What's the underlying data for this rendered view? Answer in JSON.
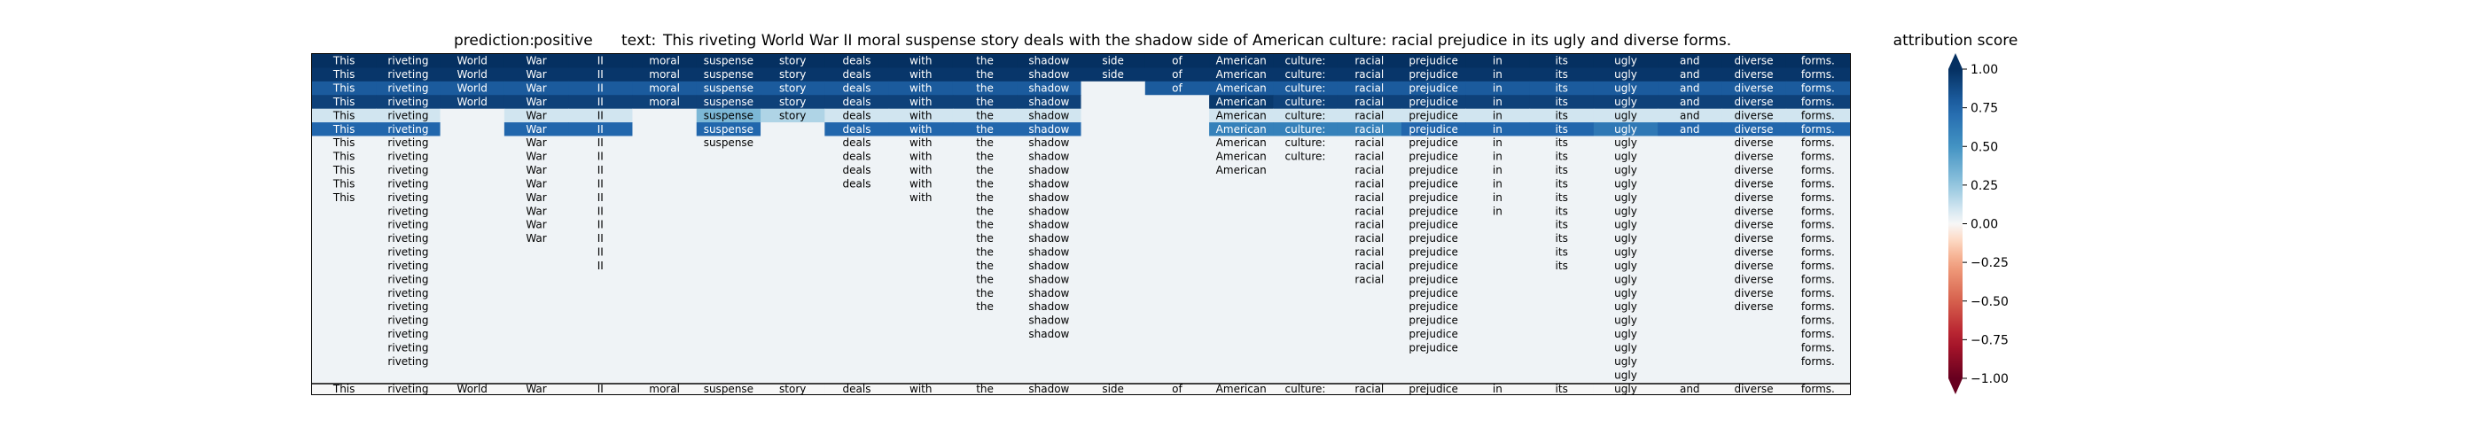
{
  "header": {
    "prediction_label": "prediction:",
    "prediction_value": "positive",
    "text_label": "text:",
    "text_value": "This riveting World War II moral suspense story deals with the shadow side of American culture: racial prejudice in its ugly and diverse forms."
  },
  "colorbar": {
    "title": "attribution score",
    "ticks": [
      "1.00",
      "0.75",
      "0.50",
      "0.25",
      "0.00",
      "−0.25",
      "−0.50",
      "−0.75",
      "−1.00"
    ],
    "colormap": "RdBu",
    "range": [
      -1,
      1
    ]
  },
  "chart_data": {
    "type": "heatmap",
    "title": "",
    "tokens": [
      "This",
      "riveting",
      "World",
      "War",
      "II",
      "moral",
      "suspense",
      "story",
      "deals",
      "with",
      "the",
      "shadow",
      "side",
      "of",
      "American",
      "culture:",
      "racial",
      "prejudice",
      "in",
      "its",
      "ugly",
      "and",
      "diverse",
      "forms."
    ],
    "column_lengths": [
      11,
      23,
      4,
      14,
      16,
      4,
      7,
      5,
      10,
      11,
      19,
      21,
      2,
      3,
      9,
      8,
      17,
      22,
      12,
      16,
      24,
      6,
      19,
      23
    ],
    "row_scores": [
      1.0,
      0.97,
      0.8,
      0.92,
      0.1,
      0.75,
      0.02,
      0.02,
      0.02,
      0.02,
      0.02,
      0.02,
      0.02,
      0.02,
      0.02,
      0.02,
      0.02,
      0.02,
      0.02,
      0.02,
      0.02,
      0.02,
      0.02,
      0.02
    ],
    "cell_overrides": [
      {
        "row": 3,
        "token": "of",
        "score": 0.02
      },
      {
        "row": 3,
        "token": "side",
        "score": 0.02
      },
      {
        "row": 3,
        "token": "American",
        "score": 0.96
      },
      {
        "row": 4,
        "token": "suspense",
        "score": 0.32
      },
      {
        "row": 4,
        "token": "story",
        "score": 0.18
      },
      {
        "row": 5,
        "token": "American",
        "score": 0.6
      },
      {
        "row": 5,
        "token": "culture:",
        "score": 0.6
      },
      {
        "row": 5,
        "token": "racial",
        "score": 0.6
      },
      {
        "row": 5,
        "token": "ugly",
        "score": 0.65
      }
    ],
    "bottom_row_score": 0.0,
    "value_range": [
      -1,
      1
    ]
  }
}
